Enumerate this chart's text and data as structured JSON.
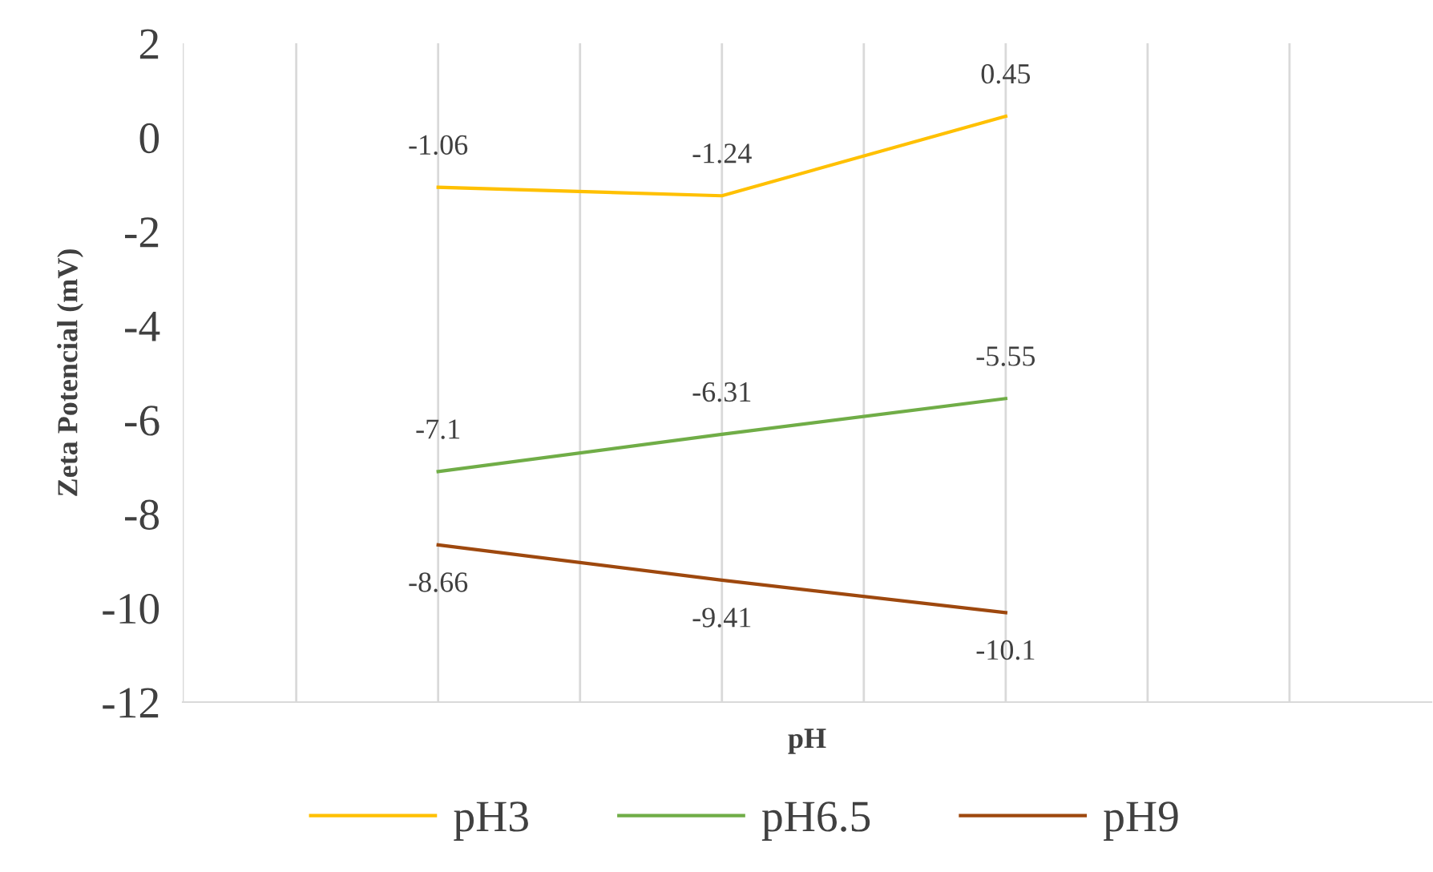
{
  "chart_data": {
    "type": "line",
    "xlabel": "pH",
    "ylabel": "Zeta Potencial (mV)",
    "categories": [
      null,
      null,
      null,
      null,
      null,
      null,
      null,
      null,
      null,
      null,
      null,
      null,
      null,
      null,
      null,
      null,
      null,
      null,
      null,
      null,
      null,
      null
    ],
    "series": [
      {
        "name": "pH3",
        "color": "#ffc000",
        "values": [
          null,
          null,
          null,
          null,
          -1.06,
          null,
          null,
          null,
          null,
          -1.24,
          null,
          null,
          null,
          null,
          0.45,
          null,
          null,
          null,
          null,
          null,
          null,
          null
        ]
      },
      {
        "name": "pH6.5",
        "color": "#70ad47",
        "values": [
          null,
          null,
          null,
          null,
          -7.1,
          null,
          null,
          null,
          null,
          -6.31,
          null,
          null,
          null,
          null,
          -5.55,
          null,
          null,
          null,
          null,
          null,
          null,
          null
        ]
      },
      {
        "name": "pH9",
        "color": "#9e480e",
        "values": [
          null,
          null,
          null,
          null,
          -8.66,
          null,
          null,
          null,
          null,
          -9.41,
          null,
          null,
          null,
          null,
          -10.1,
          null,
          null,
          null,
          null,
          null,
          null,
          null
        ]
      }
    ],
    "ylim": [
      -12,
      2
    ],
    "yticks": [
      -12,
      -10,
      -8,
      -6,
      -4,
      -2,
      0,
      2
    ],
    "grid": "x",
    "legend": "bottom",
    "data_labels": true,
    "marker": "none",
    "line_style": "solid"
  }
}
